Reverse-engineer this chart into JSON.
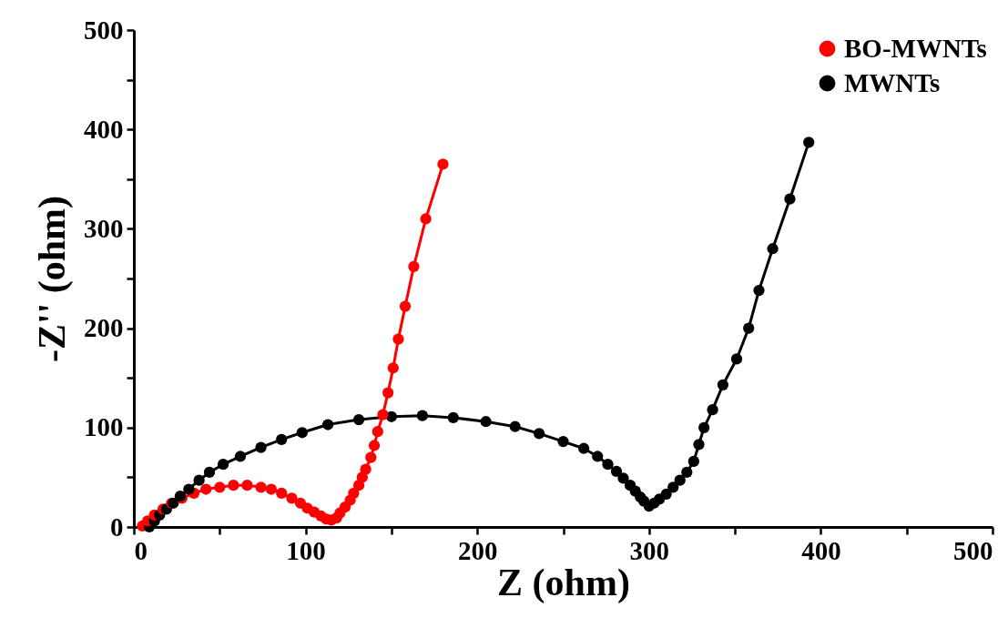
{
  "chart_data": {
    "type": "line",
    "xlabel": "Z (ohm)",
    "ylabel": "-Z'' (ohm)",
    "xlim": [
      0,
      500
    ],
    "ylim": [
      0,
      500
    ],
    "xticks": [
      0,
      {
        "value": 50,
        "label": null
      },
      100,
      {
        "value": 150,
        "label": null
      },
      200,
      {
        "value": 250,
        "label": null
      },
      300,
      {
        "value": 350,
        "label": null
      },
      400,
      {
        "value": 450,
        "label": null
      },
      500
    ],
    "yticks": [
      0,
      {
        "value": 50,
        "label": null
      },
      100,
      {
        "value": 150,
        "label": null
      },
      200,
      {
        "value": 250,
        "label": null
      },
      300,
      {
        "value": 350,
        "label": null
      },
      400,
      {
        "value": 450,
        "label": null
      },
      500
    ],
    "marker": "circle",
    "line_style": "solid",
    "grid": false,
    "legend": "top right",
    "series": [
      {
        "name": "BO-MWNTs",
        "color": "#ff0000",
        "x": [
          5,
          8,
          12,
          17,
          22,
          28,
          35,
          42,
          50,
          58,
          66,
          74,
          80,
          86,
          92,
          97,
          101,
          105,
          109,
          112,
          115,
          118,
          120,
          123,
          126,
          128,
          131,
          133,
          135,
          138,
          140,
          142,
          145,
          148,
          151,
          154,
          158,
          163,
          170,
          180
        ],
        "values": [
          1,
          6,
          12,
          18,
          24,
          29,
          34,
          38,
          40,
          42,
          42,
          40,
          38,
          34,
          29,
          24,
          19,
          15,
          11,
          8,
          7,
          9,
          14,
          20,
          27,
          34,
          42,
          50,
          58,
          70,
          82,
          96,
          113,
          135,
          160,
          189,
          222,
          262,
          310,
          365
        ]
      },
      {
        "name": "MWNTs",
        "color": "#000000",
        "x": [
          9,
          12,
          15,
          19,
          23,
          27,
          32,
          38,
          44,
          52,
          62,
          74,
          86,
          98,
          113,
          131,
          150,
          168,
          186,
          205,
          222,
          236,
          250,
          262,
          270,
          276,
          281,
          285,
          289,
          292,
          295,
          297,
          300,
          303,
          306,
          310,
          314,
          318,
          322,
          326,
          329,
          332,
          337,
          343,
          351,
          358,
          364,
          372,
          382,
          393
        ],
        "values": [
          0,
          6,
          12,
          18,
          24,
          31,
          38,
          47,
          55,
          63,
          71,
          80,
          88,
          95,
          103,
          108,
          111,
          112,
          110,
          106,
          101,
          94,
          86,
          79,
          71,
          63,
          56,
          49,
          42,
          36,
          30,
          26,
          21,
          24,
          28,
          33,
          40,
          47,
          55,
          66,
          83,
          100,
          118,
          143,
          169,
          200,
          238,
          280,
          330,
          387
        ]
      }
    ]
  }
}
